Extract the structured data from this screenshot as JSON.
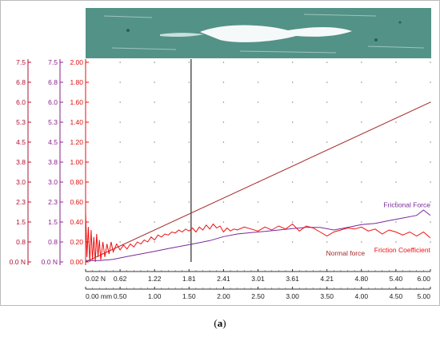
{
  "caption": {
    "open": "(",
    "letter": "a",
    "close": ")"
  },
  "colors": {
    "force_axis": "#b01030",
    "frictional_axis": "#8a1f8a",
    "coef_axis": "#e01010",
    "normal_force": "#a52a2a",
    "frictional_force": "#7a2a9a",
    "friction_coefficient": "#ee1111",
    "cursor": "#000000",
    "micrograph": "#5f9e93"
  },
  "chart_data": {
    "type": "line",
    "grid": "dots",
    "cursor_x": 1.53,
    "axes": {
      "normal_force": {
        "ticks": [
          "7.5",
          "6.8",
          "6.0",
          "5.3",
          "4.5",
          "3.8",
          "3.0",
          "2.3",
          "1.5",
          "0.8",
          "0.0 N"
        ],
        "range": [
          0,
          7.5
        ]
      },
      "frictional_force": {
        "ticks": [
          "7.5",
          "6.8",
          "6.0",
          "5.3",
          "4.5",
          "3.8",
          "3.0",
          "2.3",
          "1.5",
          "0.8",
          "0.0 N"
        ],
        "range": [
          0,
          7.5
        ]
      },
      "friction_coefficient": {
        "ticks": [
          "2.00",
          "1.80",
          "1.60",
          "1.40",
          "1.20",
          "1.00",
          "0.80",
          "0.60",
          "0.40",
          "0.20",
          "0.00"
        ],
        "range": [
          0,
          2.0
        ]
      },
      "x_force": {
        "ticks": [
          "0.02 N",
          "0.62",
          "1.22",
          "1.81",
          "2.41",
          "3.01",
          "3.61",
          "4.21",
          "4.80",
          "5.40",
          "6.00"
        ]
      },
      "x_distance": {
        "ticks": [
          "0.00 mm",
          "0.50",
          "1.00",
          "1.50",
          "2.00",
          "2.50",
          "3.00",
          "3.50",
          "4.00",
          "4.50",
          "5.00"
        ],
        "range": [
          0,
          5.0
        ]
      }
    },
    "series": [
      {
        "name": "Normal force",
        "axis": "normal_force",
        "points": [
          [
            0,
            0
          ],
          [
            5.0,
            6.0
          ]
        ]
      },
      {
        "name": "Frictional Force",
        "axis": "frictional_force",
        "points": [
          [
            0,
            0.05
          ],
          [
            0.2,
            0.05
          ],
          [
            0.4,
            0.1
          ],
          [
            0.6,
            0.2
          ],
          [
            0.8,
            0.3
          ],
          [
            1.0,
            0.4
          ],
          [
            1.2,
            0.5
          ],
          [
            1.4,
            0.6
          ],
          [
            1.6,
            0.7
          ],
          [
            1.8,
            0.8
          ],
          [
            2.0,
            0.95
          ],
          [
            2.2,
            1.05
          ],
          [
            2.4,
            1.1
          ],
          [
            2.6,
            1.15
          ],
          [
            2.8,
            1.2
          ],
          [
            3.0,
            1.25
          ],
          [
            3.2,
            1.3
          ],
          [
            3.4,
            1.3
          ],
          [
            3.6,
            1.2
          ],
          [
            3.8,
            1.3
          ],
          [
            4.0,
            1.4
          ],
          [
            4.2,
            1.45
          ],
          [
            4.4,
            1.55
          ],
          [
            4.6,
            1.65
          ],
          [
            4.8,
            1.75
          ],
          [
            4.9,
            1.95
          ],
          [
            5.0,
            1.75
          ]
        ]
      },
      {
        "name": "Friction Coefficient",
        "axis": "friction_coefficient",
        "points": [
          [
            0.0,
            0.5
          ],
          [
            0.02,
            0.05
          ],
          [
            0.04,
            0.35
          ],
          [
            0.06,
            0.0
          ],
          [
            0.08,
            0.32
          ],
          [
            0.1,
            0.02
          ],
          [
            0.12,
            0.25
          ],
          [
            0.14,
            0.0
          ],
          [
            0.16,
            0.28
          ],
          [
            0.18,
            0.05
          ],
          [
            0.2,
            0.22
          ],
          [
            0.22,
            0.02
          ],
          [
            0.25,
            0.2
          ],
          [
            0.28,
            0.05
          ],
          [
            0.31,
            0.18
          ],
          [
            0.34,
            0.08
          ],
          [
            0.37,
            0.2
          ],
          [
            0.4,
            0.1
          ],
          [
            0.45,
            0.18
          ],
          [
            0.5,
            0.12
          ],
          [
            0.55,
            0.17
          ],
          [
            0.6,
            0.13
          ],
          [
            0.65,
            0.18
          ],
          [
            0.7,
            0.15
          ],
          [
            0.75,
            0.2
          ],
          [
            0.8,
            0.18
          ],
          [
            0.85,
            0.22
          ],
          [
            0.9,
            0.2
          ],
          [
            0.95,
            0.25
          ],
          [
            1.0,
            0.22
          ],
          [
            1.05,
            0.27
          ],
          [
            1.1,
            0.25
          ],
          [
            1.15,
            0.28
          ],
          [
            1.2,
            0.27
          ],
          [
            1.25,
            0.3
          ],
          [
            1.3,
            0.29
          ],
          [
            1.35,
            0.32
          ],
          [
            1.4,
            0.3
          ],
          [
            1.45,
            0.33
          ],
          [
            1.5,
            0.31
          ],
          [
            1.55,
            0.34
          ],
          [
            1.6,
            0.3
          ],
          [
            1.65,
            0.35
          ],
          [
            1.7,
            0.32
          ],
          [
            1.75,
            0.37
          ],
          [
            1.8,
            0.33
          ],
          [
            1.85,
            0.38
          ],
          [
            1.9,
            0.34
          ],
          [
            1.95,
            0.36
          ],
          [
            2.0,
            0.3
          ],
          [
            2.05,
            0.34
          ],
          [
            2.1,
            0.31
          ],
          [
            2.15,
            0.33
          ],
          [
            2.2,
            0.32
          ],
          [
            2.3,
            0.35
          ],
          [
            2.4,
            0.33
          ],
          [
            2.5,
            0.31
          ],
          [
            2.6,
            0.35
          ],
          [
            2.7,
            0.32
          ],
          [
            2.8,
            0.36
          ],
          [
            2.9,
            0.33
          ],
          [
            3.0,
            0.38
          ],
          [
            3.1,
            0.31
          ],
          [
            3.2,
            0.36
          ],
          [
            3.3,
            0.34
          ],
          [
            3.4,
            0.3
          ],
          [
            3.5,
            0.26
          ],
          [
            3.6,
            0.3
          ],
          [
            3.7,
            0.32
          ],
          [
            3.8,
            0.34
          ],
          [
            3.9,
            0.33
          ],
          [
            4.0,
            0.35
          ],
          [
            4.1,
            0.31
          ],
          [
            4.2,
            0.33
          ],
          [
            4.3,
            0.28
          ],
          [
            4.4,
            0.32
          ],
          [
            4.5,
            0.3
          ],
          [
            4.6,
            0.27
          ],
          [
            4.7,
            0.3
          ],
          [
            4.8,
            0.26
          ],
          [
            4.9,
            0.3
          ],
          [
            5.0,
            0.24
          ]
        ]
      }
    ]
  }
}
